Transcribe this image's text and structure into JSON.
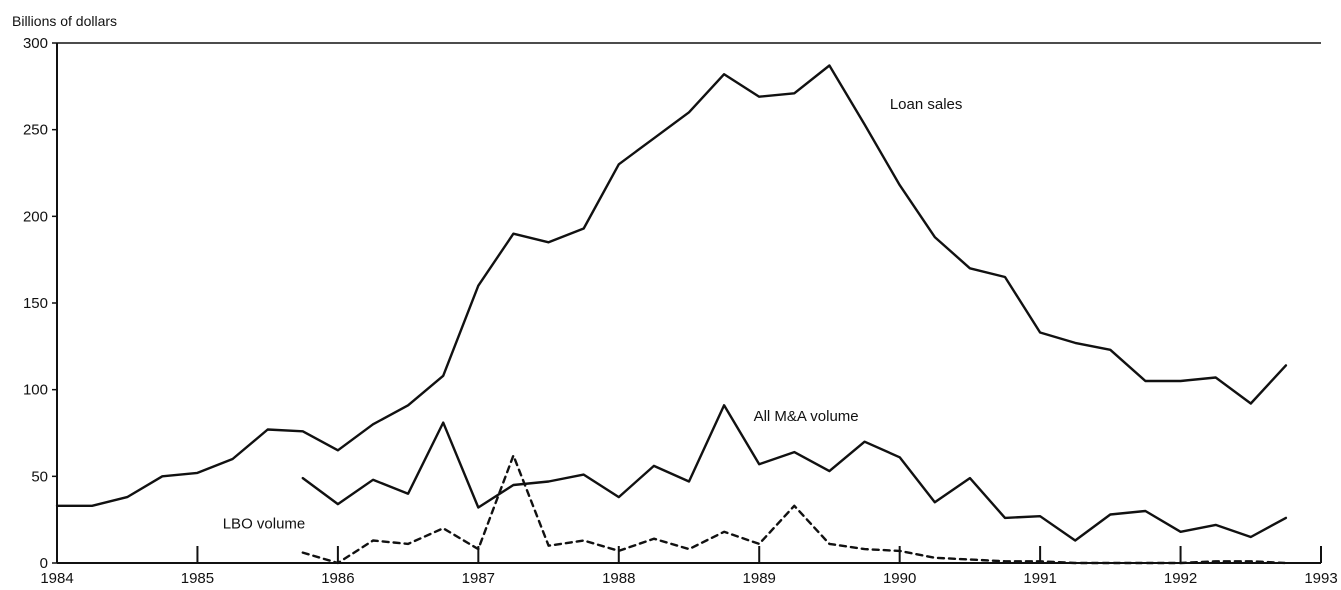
{
  "chart_data": {
    "type": "line",
    "unit_label": "Billions of dollars",
    "title": "",
    "xlabel": "",
    "ylabel": "Billions of dollars",
    "xlim": [
      1984,
      1993
    ],
    "ylim": [
      0,
      300
    ],
    "x_ticks": [
      "1984",
      "1985",
      "1986",
      "1987",
      "1988",
      "1989",
      "1990",
      "1991",
      "1992",
      "1993"
    ],
    "y_ticks": [
      "0",
      "50",
      "100",
      "150",
      "200",
      "250",
      "300"
    ],
    "grid": false,
    "legend": "none",
    "series": [
      {
        "name": "Loan sales",
        "style": "solid",
        "color": "#111111",
        "x": [
          1984.0,
          1984.25,
          1984.5,
          1984.75,
          1985.0,
          1985.25,
          1985.5,
          1985.75,
          1986.0,
          1986.25,
          1986.5,
          1986.75,
          1987.0,
          1987.25,
          1987.5,
          1987.75,
          1988.0,
          1988.25,
          1988.5,
          1988.75,
          1989.0,
          1989.25,
          1989.5,
          1989.75,
          1990.0,
          1990.25,
          1990.5,
          1990.75,
          1991.0,
          1991.25,
          1991.5,
          1991.75,
          1992.0,
          1992.25,
          1992.5,
          1992.75
        ],
        "y": [
          33,
          33,
          38,
          50,
          52,
          60,
          77,
          76,
          65,
          80,
          91,
          108,
          160,
          190,
          185,
          193,
          230,
          245,
          260,
          282,
          269,
          271,
          287,
          253,
          218,
          188,
          170,
          165,
          133,
          127,
          123,
          105,
          105,
          107,
          92,
          114
        ]
      },
      {
        "name": "All M&A volume",
        "style": "solid",
        "color": "#111111",
        "x": [
          1985.75,
          1986.0,
          1986.25,
          1986.5,
          1986.75,
          1987.0,
          1987.25,
          1987.5,
          1987.75,
          1988.0,
          1988.25,
          1988.5,
          1988.75,
          1989.0,
          1989.25,
          1989.5,
          1989.75,
          1990.0,
          1990.25,
          1990.5,
          1990.75,
          1991.0,
          1991.25,
          1991.5,
          1991.75,
          1992.0,
          1992.25,
          1992.5,
          1992.75
        ],
        "y": [
          49,
          34,
          48,
          40,
          81,
          32,
          45,
          47,
          51,
          38,
          56,
          47,
          91,
          57,
          64,
          53,
          70,
          61,
          35,
          49,
          26,
          27,
          13,
          28,
          30,
          18,
          22,
          15,
          26
        ]
      },
      {
        "name": "LBO volume",
        "style": "dashed",
        "color": "#111111",
        "x": [
          1985.75,
          1986.0,
          1986.25,
          1986.5,
          1986.75,
          1987.0,
          1987.25,
          1987.5,
          1987.75,
          1988.0,
          1988.25,
          1988.5,
          1988.75,
          1989.0,
          1989.25,
          1989.5,
          1989.75,
          1990.0,
          1990.25,
          1990.5,
          1990.75,
          1991.0,
          1991.25,
          1991.5,
          1991.75,
          1992.0,
          1992.25,
          1992.5,
          1992.75
        ],
        "y": [
          6,
          0,
          13,
          11,
          20,
          8,
          62,
          10,
          13,
          7,
          14,
          8,
          18,
          11,
          33,
          11,
          8,
          7,
          3,
          2,
          1,
          1,
          0,
          0,
          0,
          0,
          1,
          1,
          0
        ]
      }
    ]
  }
}
